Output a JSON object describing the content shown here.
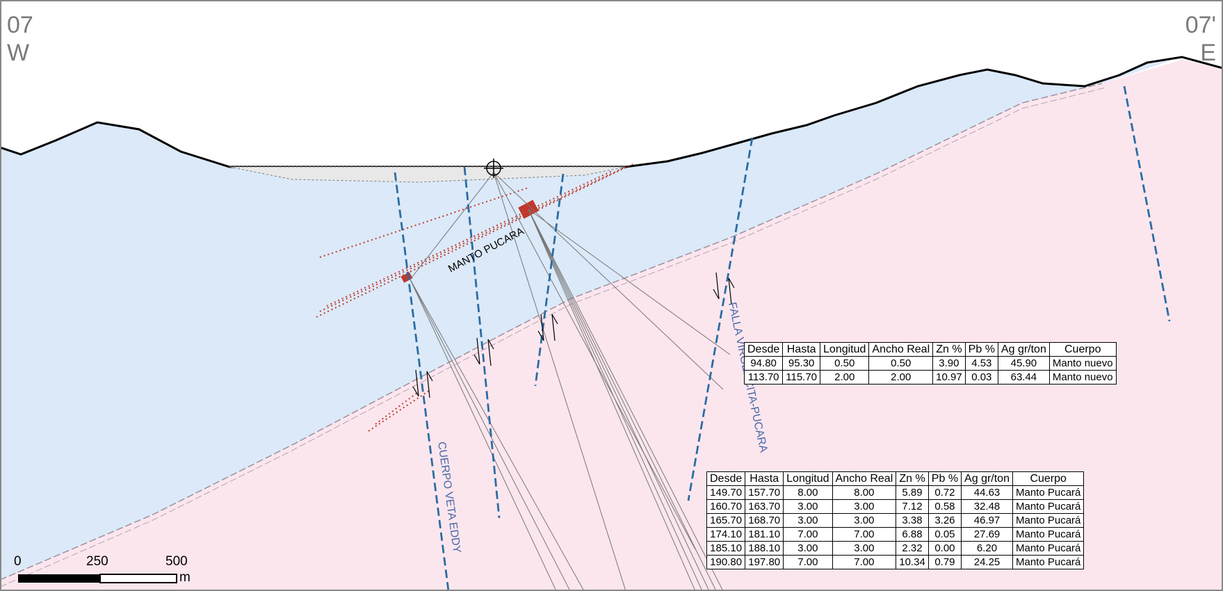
{
  "section": {
    "west_code": "07",
    "west_dir": "W",
    "east_code": "07'",
    "east_dir": "E"
  },
  "labels": {
    "manto": "MANTO PUCARA",
    "falla": "FALLA VIRGENCITA-PUCARA",
    "veta": "CUERPO VETA EDDY"
  },
  "colors": {
    "upper_unit": "#dbe9f8",
    "lower_unit": "#fbe6ee",
    "fault": "#2b6ca3",
    "mineralization": "#c0392b"
  },
  "scale_bar": {
    "ticks": [
      "0",
      "250",
      "500"
    ],
    "unit": "m"
  },
  "table_upper": {
    "headers": [
      "Desde",
      "Hasta",
      "Longitud",
      "Ancho Real",
      "Zn %",
      "Pb %",
      "Ag gr/ton",
      "Cuerpo"
    ],
    "rows": [
      [
        "94.80",
        "95.30",
        "0.50",
        "0.50",
        "3.90",
        "4.53",
        "45.90",
        "Manto nuevo"
      ],
      [
        "113.70",
        "115.70",
        "2.00",
        "2.00",
        "10.97",
        "0.03",
        "63.44",
        "Manto nuevo"
      ]
    ]
  },
  "table_lower": {
    "headers": [
      "Desde",
      "Hasta",
      "Longitud",
      "Ancho Real",
      "Zn %",
      "Pb %",
      "Ag gr/ton",
      "Cuerpo"
    ],
    "rows": [
      [
        "149.70",
        "157.70",
        "8.00",
        "8.00",
        "5.89",
        "0.72",
        "44.63",
        "Manto Pucará"
      ],
      [
        "160.70",
        "163.70",
        "3.00",
        "3.00",
        "7.12",
        "0.58",
        "32.48",
        "Manto Pucará"
      ],
      [
        "165.70",
        "168.70",
        "3.00",
        "3.00",
        "3.38",
        "3.26",
        "46.97",
        "Manto Pucará"
      ],
      [
        "174.10",
        "181.10",
        "7.00",
        "7.00",
        "6.88",
        "0.05",
        "27.69",
        "Manto Pucará"
      ],
      [
        "185.10",
        "188.10",
        "3.00",
        "3.00",
        "2.32",
        "0.00",
        "6.20",
        "Manto Pucará"
      ],
      [
        "190.80",
        "197.80",
        "7.00",
        "7.00",
        "10.34",
        "0.79",
        "24.25",
        "Manto Pucará"
      ]
    ]
  }
}
